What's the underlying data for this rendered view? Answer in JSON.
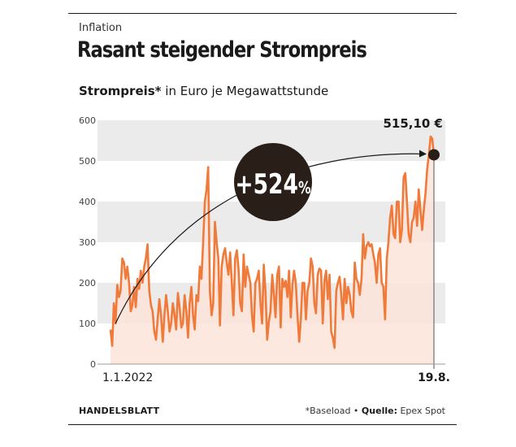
{
  "header": {
    "kicker": "Inflation",
    "title": "Rasant steigender Strompreis"
  },
  "subtitle": {
    "bold": "Strompreis*",
    "rest": " in Euro je Megawattstunde"
  },
  "footer": {
    "brand": "HANDELSBLATT",
    "footnote": "*Baseload",
    "source_label": "Quelle:",
    "source_name": "Epex Spot"
  },
  "chart_data": {
    "type": "area",
    "title": "Rasant steigender Strompreis",
    "ylabel": "Strompreis* in Euro je Megawattstunde",
    "ylim": [
      0,
      600
    ],
    "yticks": [
      "600",
      "500",
      "400",
      "300",
      "200",
      "100",
      "0"
    ],
    "x_start_label": "1.1.2022",
    "x_end_label": "19.8.",
    "end_value": 515.1,
    "end_value_label": "515,10 €",
    "change_label": "+524",
    "change_unit": "%",
    "colors": {
      "line": "#f07a3a",
      "fill": "#fde4d9",
      "band": "#ebebeb",
      "badge": "#2a1f18",
      "text": "#1a1a1a"
    },
    "series": [
      {
        "values": [
          85,
          45,
          150,
          100,
          195,
          165,
          180,
          260,
          250,
          210,
          240,
          200,
          130,
          145,
          190,
          140,
          210,
          185,
          230,
          200,
          240,
          260,
          295,
          180,
          145,
          130,
          80,
          60,
          110,
          160,
          120,
          55,
          120,
          170,
          130,
          80,
          100,
          150,
          120,
          85,
          175,
          140,
          90,
          100,
          170,
          130,
          65,
          150,
          190,
          120,
          85,
          170,
          155,
          240,
          210,
          300,
          400,
          430,
          485,
          180,
          120,
          150,
          350,
          300,
          260,
          95,
          240,
          270,
          285,
          250,
          220,
          275,
          200,
          120,
          260,
          280,
          235,
          150,
          130,
          270,
          190,
          240,
          220,
          200,
          120,
          80,
          200,
          210,
          230,
          150,
          100,
          245,
          180,
          60,
          105,
          130,
          220,
          170,
          115,
          220,
          240,
          90,
          210,
          190,
          205,
          165,
          230,
          115,
          195,
          230,
          200,
          120,
          55,
          110,
          200,
          200,
          110,
          180,
          200,
          260,
          240,
          150,
          125,
          220,
          235,
          230,
          100,
          205,
          230,
          160,
          220,
          80,
          65,
          40,
          180,
          200,
          215,
          170,
          110,
          210,
          150,
          190,
          170,
          130,
          115,
          250,
          210,
          200,
          170,
          210,
          320,
          260,
          290,
          300,
          290,
          295,
          270,
          250,
          200,
          270,
          285,
          200,
          190,
          110,
          260,
          300,
          360,
          390,
          320,
          310,
          400,
          400,
          300,
          330,
          460,
          470,
          400,
          320,
          300,
          350,
          360,
          400,
          340,
          430,
          380,
          330,
          380,
          420,
          480,
          515,
          560,
          555,
          515.1
        ]
      }
    ]
  }
}
